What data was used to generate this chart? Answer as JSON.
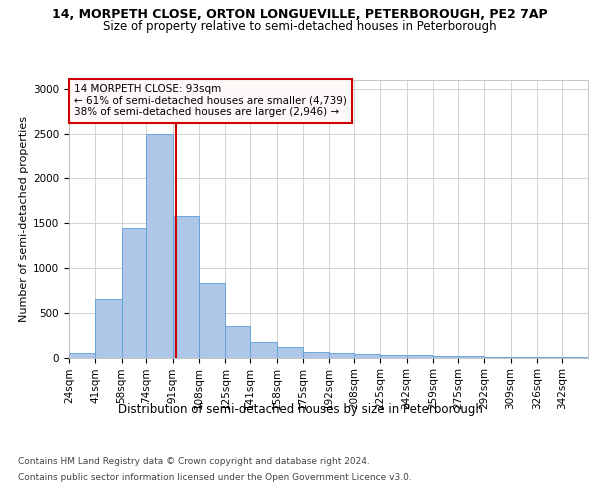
{
  "title_line1": "14, MORPETH CLOSE, ORTON LONGUEVILLE, PETERBOROUGH, PE2 7AP",
  "title_line2": "Size of property relative to semi-detached houses in Peterborough",
  "xlabel": "Distribution of semi-detached houses by size in Peterborough",
  "ylabel": "Number of semi-detached properties",
  "footer_line1": "Contains HM Land Registry data © Crown copyright and database right 2024.",
  "footer_line2": "Contains public sector information licensed under the Open Government Licence v3.0.",
  "annotation_title": "14 MORPETH CLOSE: 93sqm",
  "annotation_line1": "← 61% of semi-detached houses are smaller (4,739)",
  "annotation_line2": "38% of semi-detached houses are larger (2,946) →",
  "property_size": 93,
  "bin_edges": [
    24,
    41,
    58,
    74,
    91,
    108,
    125,
    141,
    158,
    175,
    192,
    208,
    225,
    242,
    259,
    275,
    292,
    309,
    326,
    342,
    359
  ],
  "bar_heights": [
    50,
    650,
    1450,
    2500,
    1580,
    830,
    350,
    175,
    115,
    60,
    50,
    35,
    30,
    25,
    20,
    15,
    10,
    8,
    5,
    3
  ],
  "bar_color": "#aec6e8",
  "bar_edge_color": "#5a9fd4",
  "red_line_color": "#cc0000",
  "annotation_box_facecolor": "#fff8f8",
  "annotation_border_color": "#cc0000",
  "background_color": "#ffffff",
  "grid_color": "#cccccc",
  "ylim": [
    0,
    3100
  ],
  "yticks": [
    0,
    500,
    1000,
    1500,
    2000,
    2500,
    3000
  ],
  "title1_fontsize": 9.0,
  "title2_fontsize": 8.5,
  "ylabel_fontsize": 8.0,
  "xlabel_fontsize": 8.5,
  "tick_fontsize": 7.5,
  "annotation_fontsize": 7.5,
  "footer_fontsize": 6.5
}
